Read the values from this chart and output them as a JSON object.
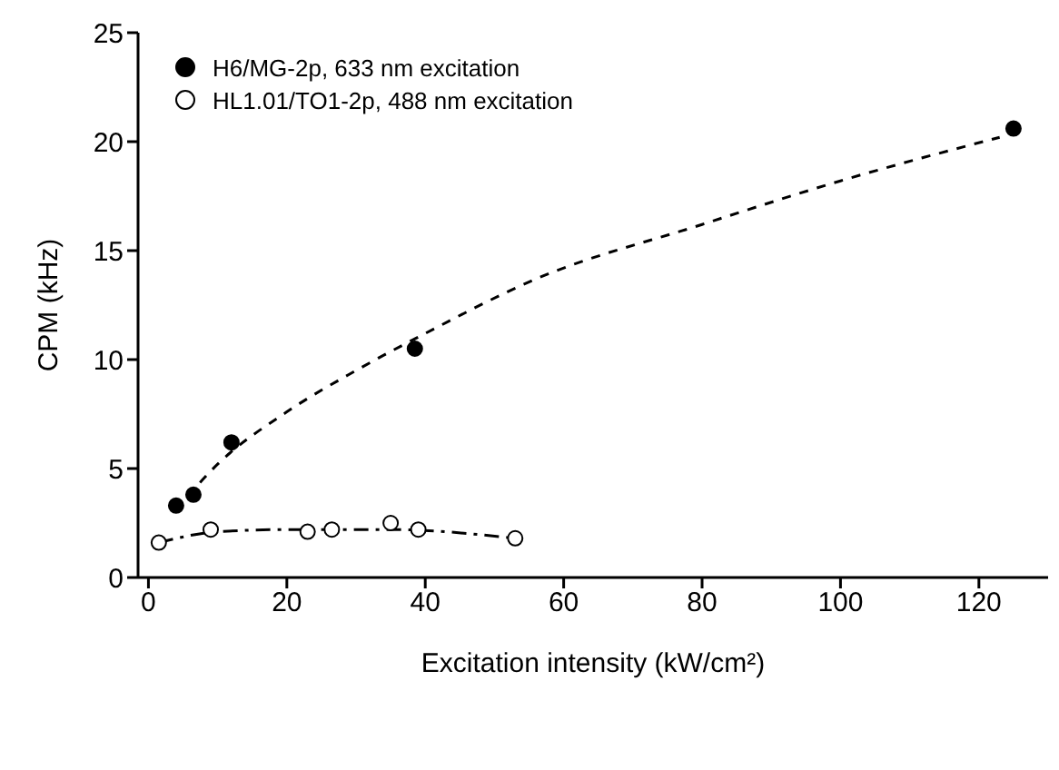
{
  "chart_data": {
    "type": "scatter",
    "xlabel": "Excitation intensity (kW/cm²)",
    "ylabel": "CPM (kHz)",
    "xlim": [
      -1.5,
      130
    ],
    "ylim": [
      0,
      25
    ],
    "xticks": [
      0,
      20,
      40,
      60,
      80,
      100,
      120
    ],
    "yticks": [
      0,
      5,
      10,
      15,
      20,
      25
    ],
    "grid": false,
    "legend": "top left",
    "marker": "circle",
    "series": [
      {
        "name": "H6/MG-2p, 633 nm excitation",
        "color": "#000000",
        "x": [
          4,
          6.5,
          12,
          38.5,
          125
        ],
        "values": [
          3.3,
          3.8,
          6.2,
          10.5,
          20.6
        ]
      },
      {
        "name": "HL1.01/TO1-2p, 488 nm excitation",
        "color": "#ffffff",
        "x": [
          1.5,
          9,
          23,
          26.5,
          35,
          39,
          53
        ],
        "values": [
          1.6,
          2.2,
          2.1,
          2.2,
          2.5,
          2.2,
          1.8
        ]
      },
      {
        "type": "line",
        "color": "#000000",
        "line_style": "dashed",
        "marker": "none",
        "x": [
          4,
          10,
          20,
          30,
          40,
          56,
          80,
          100,
          123
        ],
        "values": [
          3.1,
          5.2,
          7.6,
          9.5,
          11.2,
          13.7,
          16.2,
          18.2,
          20.2
        ]
      },
      {
        "type": "line",
        "color": "#000000",
        "line_style": "dotted",
        "marker": "none",
        "x": [
          1.5,
          10,
          20,
          35,
          53
        ],
        "values": [
          1.6,
          2.1,
          2.2,
          2.2,
          1.8
        ]
      }
    ]
  }
}
